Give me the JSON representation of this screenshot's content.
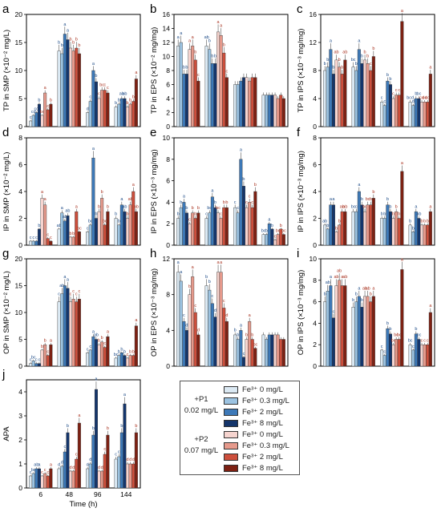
{
  "colors": [
    "#dbe9f3",
    "#9cc3e1",
    "#3d79b8",
    "#14356b",
    "#f6d4cf",
    "#e69a8c",
    "#cd4f3c",
    "#7d2113"
  ],
  "legend": {
    "groups": [
      {
        "label": "+P1",
        "conc": "0.02 mg/L"
      },
      {
        "label": "+P2",
        "conc": "0.07 mg/L"
      }
    ],
    "items": [
      "Fe³⁺ 0 mg/L",
      "Fe³⁺ 0.3 mg/L",
      "Fe³⁺ 2 mg/L",
      "Fe³⁺ 8 mg/L",
      "Fe³⁺ 0 mg/L",
      "Fe³⁺ 0.3 mg/L",
      "Fe³⁺ 2 mg/L",
      "Fe³⁺ 8 mg/L"
    ]
  },
  "chart_data": [
    {
      "type": "bar",
      "panel": "a",
      "ylabel": "TP in SMP (×10⁻² mg/L)",
      "ylim": [
        0,
        20
      ],
      "yticks": [
        0,
        5,
        10,
        15,
        20
      ],
      "categories": [
        "6",
        "48",
        "96",
        "144"
      ],
      "values": [
        [
          1.0,
          2.0,
          2.5,
          4.0,
          2.0,
          6.0,
          3.0,
          4.0
        ],
        [
          13.5,
          13.0,
          16.5,
          15.5,
          14.0,
          13.5,
          14.0,
          13.0
        ],
        [
          2.5,
          4.5,
          10.0,
          8.0,
          5.0,
          6.5,
          6.5,
          6.0
        ],
        [
          3.5,
          4.0,
          5.0,
          5.0,
          3.5,
          4.0,
          4.5,
          8.5
        ]
      ],
      "labels": [
        [
          "c",
          "cd",
          "cd",
          "b",
          "bc",
          "a",
          "c",
          "b"
        ],
        [
          "b",
          "b",
          "a",
          "a",
          "b",
          "b",
          "b",
          "b"
        ],
        [
          "d",
          "c",
          "a",
          "b",
          "c",
          "bc",
          "c",
          "c"
        ],
        [
          "b",
          "b",
          "ab",
          "ab",
          "b",
          "b",
          "b",
          "a"
        ]
      ]
    },
    {
      "type": "bar",
      "panel": "b",
      "ylabel": "TP in EPS (×10⁻² mg/mg)",
      "ylim": [
        0,
        16
      ],
      "yticks": [
        0,
        2,
        4,
        6,
        8,
        10,
        12,
        14,
        16
      ],
      "categories": [
        "6",
        "48",
        "96",
        "144"
      ],
      "values": [
        [
          11.5,
          12.0,
          7.5,
          7.5,
          11.0,
          11.5,
          9.5,
          6.5
        ],
        [
          11.5,
          11.0,
          9.0,
          9.0,
          13.5,
          13.0,
          10.5,
          7.0
        ],
        [
          6.0,
          6.0,
          6.5,
          7.0,
          7.0,
          6.5,
          7.0,
          7.0
        ],
        [
          4.5,
          4.5,
          4.5,
          4.5,
          4.5,
          4.0,
          4.5,
          4.0
        ]
      ],
      "labels": [
        [
          "a",
          "a",
          "b",
          "b",
          "a",
          "a",
          "b",
          "c"
        ],
        [
          "ab",
          "b",
          "b",
          "b",
          "a",
          "a",
          "b",
          "c"
        ],
        [
          "",
          "",
          "",
          "",
          "",
          "",
          "",
          ""
        ],
        [
          "",
          "",
          "",
          "",
          "",
          "",
          "",
          ""
        ]
      ]
    },
    {
      "type": "bar",
      "panel": "c",
      "ylabel": "TP in IPS (×10⁻³ mg/mg)",
      "ylim": [
        0,
        16
      ],
      "yticks": [
        0,
        4,
        8,
        12,
        16
      ],
      "categories": [
        "6",
        "48",
        "96",
        "144"
      ],
      "values": [
        [
          8.0,
          8.5,
          11.0,
          7.5,
          9.5,
          8.5,
          7.5,
          9.5
        ],
        [
          8.5,
          8.0,
          11.0,
          9.0,
          9.5,
          9.0,
          8.0,
          10.0
        ],
        [
          3.5,
          3.0,
          6.5,
          6.0,
          4.0,
          4.5,
          4.5,
          15.0
        ],
        [
          3.5,
          3.0,
          4.0,
          4.0,
          3.5,
          3.5,
          3.5,
          7.5
        ]
      ],
      "labels": [
        [
          "b",
          "b",
          "a",
          "b",
          "ab",
          "b",
          "b",
          "ab"
        ],
        [
          "bc",
          "b",
          "a",
          "b",
          "b",
          "b",
          "c",
          "b"
        ],
        [
          "c",
          "c",
          "b",
          "b",
          "c",
          "c",
          "c",
          "a"
        ],
        [
          "bcd",
          "d",
          "b",
          "bc",
          "cd",
          "cd",
          "cd",
          "a"
        ]
      ]
    },
    {
      "type": "bar",
      "panel": "d",
      "ylabel": "IP in SMP (×10⁻² mg/L)",
      "ylim": [
        0,
        8
      ],
      "yticks": [
        0,
        2,
        4,
        6,
        8
      ],
      "categories": [
        "6",
        "48",
        "96",
        "144"
      ],
      "values": [
        [
          0.3,
          0.3,
          0.3,
          1.2,
          3.5,
          3.0,
          0.5,
          0.3
        ],
        [
          1.2,
          2.4,
          1.8,
          2.2,
          0.6,
          0.6,
          2.5,
          1.0
        ],
        [
          1.0,
          1.5,
          6.5,
          2.0,
          2.5,
          3.5,
          1.5,
          2.5
        ],
        [
          2.0,
          1.5,
          3.0,
          2.5,
          2.0,
          3.0,
          4.0,
          2.5
        ]
      ],
      "labels": [
        [
          "c",
          "c",
          "c",
          "b",
          "a",
          "a",
          "c",
          "c"
        ],
        [
          "ab",
          "a",
          "ab",
          "ab",
          "b",
          "b",
          "a",
          "bc"
        ],
        [
          "c",
          "bc",
          "a",
          "b",
          "b",
          "b",
          "bc",
          "b"
        ],
        [
          "b",
          "b",
          "a",
          "ab",
          "b",
          "ab",
          "a",
          "ab"
        ]
      ]
    },
    {
      "type": "bar",
      "panel": "e",
      "ylabel": "IP in EPS (×10⁻³ mg/mg)",
      "ylim": [
        0,
        10
      ],
      "yticks": [
        0,
        2,
        4,
        6,
        8,
        10
      ],
      "categories": [
        "6",
        "48",
        "96",
        "144"
      ],
      "values": [
        [
          2.5,
          3.5,
          4.0,
          3.0,
          2.0,
          3.0,
          2.5,
          3.0
        ],
        [
          2.5,
          3.0,
          4.5,
          3.5,
          3.0,
          2.5,
          3.5,
          3.5
        ],
        [
          3.5,
          3.0,
          8.0,
          5.5,
          3.5,
          4.0,
          3.5,
          5.0
        ],
        [
          1.0,
          1.0,
          2.0,
          1.5,
          0.5,
          1.0,
          1.5,
          1.0
        ]
      ],
      "labels": [
        [
          "b",
          "b",
          "a",
          "b",
          "c",
          "b",
          "b",
          "b"
        ],
        [
          "c",
          "bc",
          "a",
          "b",
          "bc",
          "c",
          "b",
          "b"
        ],
        [
          "c",
          "c",
          "a",
          "b",
          "c",
          "c",
          "c",
          "b"
        ],
        [
          "bc",
          "b",
          "a",
          "b",
          "c",
          "bc",
          "b",
          "bc"
        ]
      ]
    },
    {
      "type": "bar",
      "panel": "f",
      "ylabel": "IP in IPS (×10⁻³ mg/mg)",
      "ylim": [
        0,
        8
      ],
      "yticks": [
        0,
        2,
        4,
        6,
        8
      ],
      "categories": [
        "6",
        "48",
        "96",
        "144"
      ],
      "values": [
        [
          1.5,
          1.2,
          3.0,
          3.0,
          1.0,
          1.5,
          2.5,
          2.5
        ],
        [
          2.5,
          2.5,
          4.0,
          3.0,
          2.5,
          3.0,
          3.0,
          3.5
        ],
        [
          2.0,
          2.0,
          3.0,
          2.5,
          2.0,
          2.5,
          2.0,
          5.5
        ],
        [
          1.5,
          1.0,
          2.5,
          2.0,
          1.5,
          1.5,
          1.5,
          2.5
        ]
      ],
      "labels": [
        [
          "ab",
          "b",
          "a",
          "a",
          "b",
          "b",
          "ab",
          "ab"
        ],
        [
          "bc",
          "c",
          "a",
          "b",
          "bc",
          "bc",
          "b",
          "b"
        ],
        [
          "b",
          "b",
          "b",
          "b",
          "b",
          "b",
          "b",
          "a"
        ],
        [
          "b",
          "b",
          "a",
          "ab",
          "b",
          "b",
          "b",
          "a"
        ]
      ]
    },
    {
      "type": "bar",
      "panel": "g",
      "ylabel": "OP in SMP (×10⁻² mg/L)",
      "ylim": [
        0,
        20
      ],
      "yticks": [
        0,
        5,
        10,
        15,
        20
      ],
      "categories": [
        "6",
        "48",
        "96",
        "144"
      ],
      "values": [
        [
          0.5,
          1.0,
          0.5,
          0.5,
          3.0,
          4.0,
          2.0,
          4.0
        ],
        [
          12.0,
          13.5,
          15.0,
          14.5,
          12.0,
          12.5,
          12.0,
          12.5
        ],
        [
          2.5,
          3.0,
          5.5,
          5.0,
          4.0,
          4.5,
          3.5,
          5.5
        ],
        [
          1.5,
          2.0,
          2.5,
          2.0,
          1.5,
          2.0,
          2.0,
          7.5
        ]
      ],
      "labels": [
        [
          "c",
          "bc",
          "c",
          "c",
          "b",
          "b",
          "c",
          "a"
        ],
        [
          "c",
          "ab",
          "a",
          "a",
          "c",
          "c",
          "c",
          "c"
        ],
        [
          "c",
          "c",
          "a",
          "ab",
          "b",
          "b",
          "c",
          "a"
        ],
        [
          "bc",
          "b",
          "b",
          "b",
          "c",
          "b",
          "b",
          "a"
        ]
      ]
    },
    {
      "type": "bar",
      "panel": "h",
      "ylabel": "OP in EPS (×10⁻³ mg/mg)",
      "ylim": [
        0,
        12
      ],
      "yticks": [
        0,
        4,
        8,
        12
      ],
      "categories": [
        "6",
        "48",
        "96",
        "144"
      ],
      "values": [
        [
          10.5,
          9.5,
          5.0,
          4.0,
          8.0,
          10.0,
          6.0,
          3.5
        ],
        [
          9.0,
          8.5,
          7.0,
          5.5,
          10.5,
          10.5,
          6.5,
          5.0
        ],
        [
          3.5,
          3.0,
          4.0,
          1.0,
          3.0,
          5.0,
          3.0,
          2.0
        ],
        [
          3.5,
          3.0,
          3.5,
          3.5,
          3.5,
          3.5,
          3.0,
          3.0
        ]
      ],
      "labels": [
        [
          "a",
          "a",
          "c",
          "d",
          "b",
          "a",
          "c",
          "d"
        ],
        [
          "b",
          "b",
          "c",
          "d",
          "a",
          "a",
          "c",
          "d"
        ],
        [
          "b",
          "b",
          "a",
          "c",
          "b",
          "a",
          "b",
          "bc"
        ],
        [
          "",
          "",
          "",
          "",
          "",
          "",
          "",
          ""
        ]
      ]
    },
    {
      "type": "bar",
      "panel": "i",
      "ylabel": "OP in IPS (×10⁻³ mg/mg)",
      "ylim": [
        0,
        10
      ],
      "yticks": [
        0,
        2,
        4,
        6,
        8,
        10
      ],
      "categories": [
        "6",
        "48",
        "96",
        "144"
      ],
      "values": [
        [
          6.0,
          7.0,
          7.5,
          4.5,
          7.5,
          8.0,
          7.5,
          7.5
        ],
        [
          5.5,
          6.0,
          6.5,
          5.5,
          6.5,
          6.5,
          6.0,
          6.5
        ],
        [
          1.5,
          1.0,
          3.5,
          3.0,
          2.0,
          2.5,
          2.5,
          9.0
        ],
        [
          2.0,
          1.5,
          3.0,
          2.5,
          2.0,
          2.0,
          2.0,
          5.0
        ]
      ],
      "labels": [
        [
          "b",
          "ab",
          "a",
          "c",
          "ab",
          "ab",
          "a",
          "ab"
        ],
        [
          "b",
          "b",
          "a",
          "b",
          "ab",
          "ab",
          "b",
          "a"
        ],
        [
          "c",
          "c",
          "b",
          "b",
          "bc",
          "bc",
          "bc",
          "a"
        ],
        [
          "bc",
          "c",
          "b",
          "bc",
          "c",
          "c",
          "c",
          "a"
        ]
      ]
    },
    {
      "type": "bar",
      "panel": "j",
      "xlabel": "Time (h)",
      "ylabel": "APA",
      "ylim": [
        0,
        4.5
      ],
      "yticks": [
        0,
        1,
        2,
        3,
        4
      ],
      "categories": [
        "6",
        "48",
        "96",
        "144"
      ],
      "values": [
        [
          0.5,
          0.6,
          0.8,
          0.8,
          0.5,
          0.6,
          0.5,
          0.8
        ],
        [
          0.8,
          0.9,
          1.5,
          2.3,
          0.7,
          0.7,
          1.2,
          2.7
        ],
        [
          0.8,
          1.0,
          2.2,
          4.1,
          0.7,
          0.7,
          1.4,
          2.2
        ],
        [
          1.2,
          1.3,
          2.3,
          3.5,
          1.0,
          1.0,
          1.0,
          2.3
        ]
      ],
      "labels": [
        [
          "c",
          "bc",
          "ab",
          "a",
          "c",
          "c",
          "c",
          "a"
        ],
        [
          "d",
          "d",
          "c",
          "b",
          "d",
          "d",
          "c",
          "a"
        ],
        [
          "d",
          "d",
          "b",
          "a",
          "d",
          "d",
          "c",
          "b"
        ],
        [
          "c",
          "c",
          "b",
          "a",
          "d",
          "d",
          "d",
          "b"
        ]
      ]
    }
  ]
}
